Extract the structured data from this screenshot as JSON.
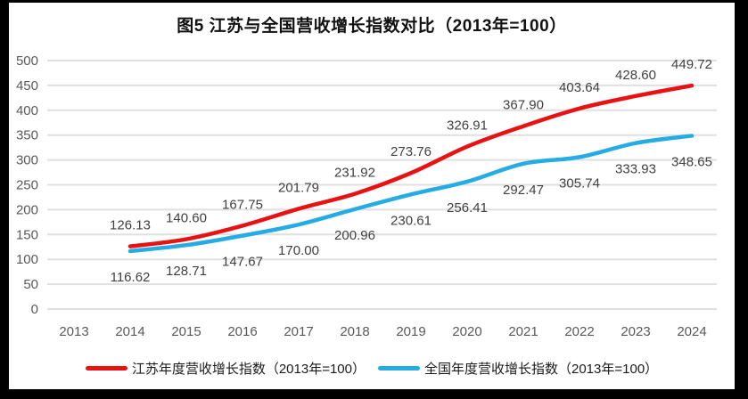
{
  "frame_color": "#000000",
  "chart_data": {
    "type": "line",
    "title": "图5  江苏与全国营收增长指数对比（2013年=100）",
    "categories": [
      "2013",
      "2014",
      "2015",
      "2016",
      "2017",
      "2018",
      "2019",
      "2020",
      "2021",
      "2022",
      "2023",
      "2024"
    ],
    "series": [
      {
        "name": "江苏年度营收增长指数（2013年=100）",
        "color": "#e81212",
        "label_position": "above",
        "values": [
          null,
          126.13,
          140.6,
          167.75,
          201.79,
          231.92,
          273.76,
          326.91,
          367.9,
          403.64,
          428.6,
          449.72
        ]
      },
      {
        "name": "全国年度营收增长指数（2013年=100）",
        "color": "#25ace4",
        "label_position": "below",
        "values": [
          null,
          116.62,
          128.71,
          147.67,
          170.0,
          200.96,
          230.61,
          256.41,
          292.47,
          305.74,
          333.93,
          348.65
        ]
      }
    ],
    "ylim": [
      0,
      500
    ],
    "ytick_step": 50,
    "yticks": [
      0,
      50,
      100,
      150,
      200,
      250,
      300,
      350,
      400,
      450,
      500
    ],
    "grid": "horizontal",
    "legend_position": "bottom",
    "colors": {
      "gridline": "#e0e0e0",
      "tick_label": "#595959",
      "data_label": "#404040",
      "background": "#ffffff"
    }
  }
}
